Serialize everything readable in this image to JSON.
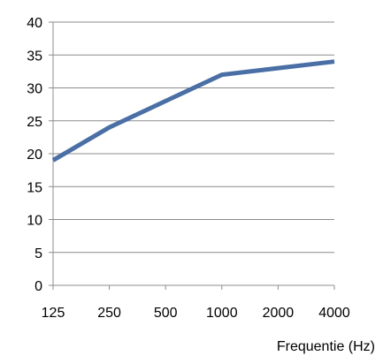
{
  "chart_data": {
    "type": "line",
    "title": "",
    "xlabel": "Frequentie (Hz)",
    "ylabel": "",
    "categories": [
      "125",
      "250",
      "500",
      "1000",
      "2000",
      "4000"
    ],
    "ylim": [
      0,
      40
    ],
    "yticks": [
      "0",
      "5",
      "10",
      "15",
      "20",
      "25",
      "30",
      "35",
      "40"
    ],
    "grid": "horizontal",
    "legend": "none",
    "series": [
      {
        "values": [
          19,
          24,
          28,
          32,
          33,
          34
        ],
        "color": "#4A6FA5"
      }
    ],
    "colors": {
      "line": "#4A6FA5",
      "grid": "#8c8c8c",
      "axis": "#8c8c8c"
    }
  }
}
